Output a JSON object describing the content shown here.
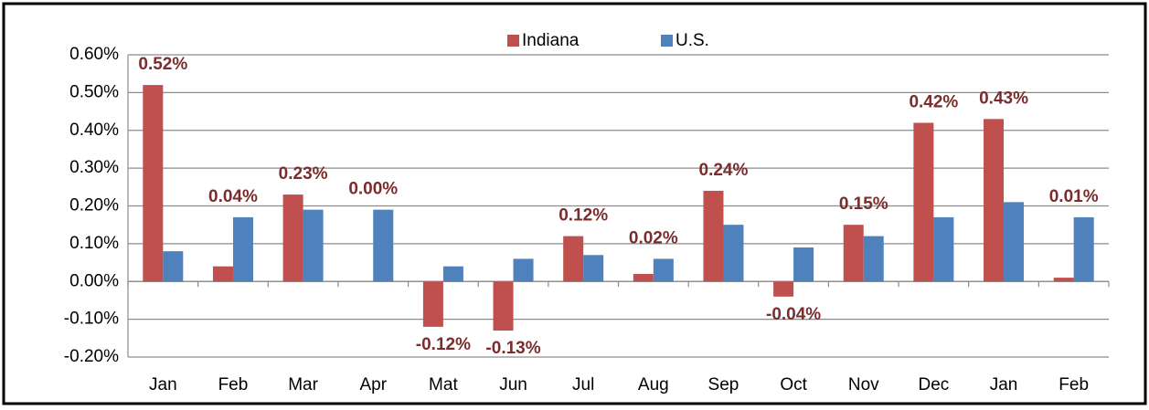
{
  "chart_data": {
    "type": "bar",
    "categories": [
      "Jan",
      "Feb",
      "Mar",
      "Apr",
      "Mat",
      "Jun",
      "Jul",
      "Aug",
      "Sep",
      "Oct",
      "Nov",
      "Dec",
      "Jan",
      "Feb"
    ],
    "series": [
      {
        "name": "Indiana",
        "color": "#c0504d",
        "values": [
          0.52,
          0.04,
          0.23,
          0.0,
          -0.12,
          -0.13,
          0.12,
          0.02,
          0.24,
          -0.04,
          0.15,
          0.42,
          0.43,
          0.01
        ],
        "value_labels": [
          "0.52%",
          "0.04%",
          "0.23%",
          "0.00%",
          "-0.12%",
          "-0.13%",
          "0.12%",
          "0.02%",
          "0.24%",
          "-0.04%",
          "0.15%",
          "0.42%",
          "0.43%",
          "0.01%"
        ]
      },
      {
        "name": "U.S.",
        "color": "#4f81bd",
        "values": [
          0.08,
          0.17,
          0.19,
          0.19,
          0.04,
          0.06,
          0.07,
          0.06,
          0.15,
          0.09,
          0.12,
          0.17,
          0.21,
          0.17
        ]
      }
    ],
    "ylim": [
      -0.2,
      0.6
    ],
    "yticks": [
      {
        "value": -0.2,
        "label": "-0.20%"
      },
      {
        "value": -0.1,
        "label": "-0.10%"
      },
      {
        "value": 0,
        "label": "0.00%"
      },
      {
        "value": 0.1,
        "label": "0.10%"
      },
      {
        "value": 0.2,
        "label": "0.20%"
      },
      {
        "value": 0.3,
        "label": "0.30%"
      },
      {
        "value": 0.4,
        "label": "0.40%"
      },
      {
        "value": 0.5,
        "label": "0.50%"
      },
      {
        "value": 0.6,
        "label": "0.60%"
      }
    ],
    "grid": true,
    "legend": "top"
  }
}
